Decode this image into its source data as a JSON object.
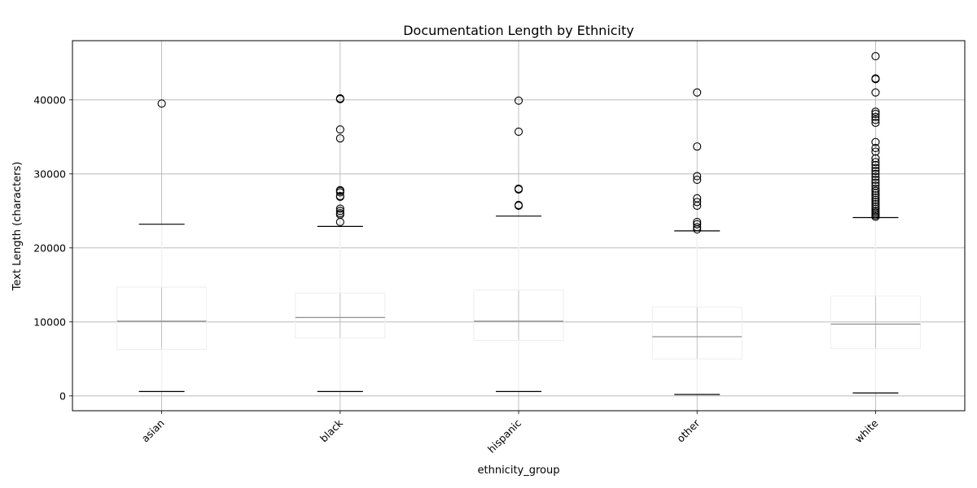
{
  "chart_data": {
    "type": "box",
    "title": "Documentation Length by Ethnicity",
    "xlabel": "ethnicity_group",
    "ylabel": "Text Length (characters)",
    "ylim": [
      -2000,
      48000
    ],
    "yticks": [
      0,
      10000,
      20000,
      30000,
      40000
    ],
    "grid": true,
    "categories": [
      "asian",
      "black",
      "hispanic",
      "other",
      "white"
    ],
    "boxes": [
      {
        "category": "asian",
        "whisker_low": 600,
        "q1": 6300,
        "median": 10100,
        "q3": 14700,
        "whisker_high": 23200,
        "outliers": [
          39500
        ]
      },
      {
        "category": "black",
        "whisker_low": 600,
        "q1": 7800,
        "median": 10600,
        "q3": 13900,
        "whisker_high": 22900,
        "outliers": [
          23500,
          24500,
          24700,
          25000,
          25300,
          26900,
          27000,
          27500,
          27700,
          27800,
          34800,
          36000,
          40100,
          40200
        ]
      },
      {
        "category": "hispanic",
        "whisker_low": 600,
        "q1": 7500,
        "median": 10100,
        "q3": 14300,
        "whisker_high": 24300,
        "outliers": [
          25700,
          25800,
          27900,
          28000,
          35700,
          39900
        ]
      },
      {
        "category": "other",
        "whisker_low": 200,
        "q1": 5000,
        "median": 8000,
        "q3": 12000,
        "whisker_high": 22300,
        "outliers": [
          22500,
          22800,
          23200,
          23500,
          25700,
          26200,
          26700,
          29200,
          29700,
          33700,
          41000
        ]
      },
      {
        "category": "white",
        "whisker_low": 400,
        "q1": 6400,
        "median": 9700,
        "q3": 13500,
        "whisker_high": 24100,
        "outliers": [
          24200,
          24400,
          24600,
          24800,
          25000,
          25300,
          25600,
          25900,
          26200,
          26500,
          26800,
          27100,
          27400,
          27700,
          28000,
          28400,
          28800,
          29200,
          29600,
          30000,
          30400,
          30800,
          31200,
          31600,
          32100,
          33000,
          33500,
          34300,
          36900,
          37300,
          37700,
          38100,
          38400,
          41000,
          42800,
          42900,
          45900
        ]
      }
    ]
  }
}
